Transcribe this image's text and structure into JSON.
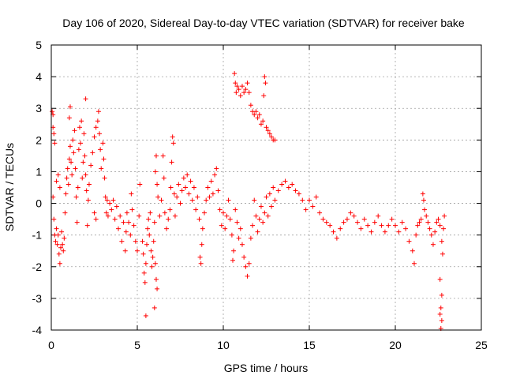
{
  "chart_data": {
    "type": "scatter",
    "title": "Day 106 of 2020, Sidereal Day-to-day VTEC variation (SDTVAR) for receiver bake",
    "xlabel": "GPS time / hours",
    "ylabel": "SDTVAR / TECUs",
    "xlim": [
      0,
      25
    ],
    "ylim": [
      -4,
      5
    ],
    "xticks": [
      0,
      5,
      10,
      15,
      20,
      25
    ],
    "yticks": [
      -4,
      -3,
      -2,
      -1,
      0,
      1,
      2,
      3,
      4,
      5
    ],
    "xtick_labels": [
      "0",
      "5",
      "10",
      "15",
      "20",
      "25"
    ],
    "ytick_labels": [
      "-4",
      "-3",
      "-2",
      "-1",
      "0",
      "1",
      "2",
      "3",
      "4",
      "5"
    ],
    "grid": true,
    "marker": "+",
    "marker_color": "#ff0000",
    "series": [
      {
        "name": "SDTVAR",
        "points": [
          [
            0.05,
            2.9
          ],
          [
            0.1,
            2.8
          ],
          [
            0.1,
            2.4
          ],
          [
            0.15,
            2.2
          ],
          [
            0.2,
            1.9
          ],
          [
            0.1,
            0.2
          ],
          [
            0.15,
            -0.5
          ],
          [
            0.2,
            -1.0
          ],
          [
            0.25,
            -1.2
          ],
          [
            0.3,
            -0.8
          ],
          [
            0.35,
            -1.3
          ],
          [
            0.4,
            -1.0
          ],
          [
            0.45,
            -1.6
          ],
          [
            0.5,
            -1.9
          ],
          [
            0.55,
            -1.4
          ],
          [
            0.6,
            -0.9
          ],
          [
            0.65,
            -1.3
          ],
          [
            0.7,
            -1.5
          ],
          [
            0.75,
            -1.1
          ],
          [
            0.8,
            -0.3
          ],
          [
            0.3,
            0.7
          ],
          [
            0.4,
            0.9
          ],
          [
            0.5,
            0.5
          ],
          [
            0.85,
            0.3
          ],
          [
            0.9,
            0.8
          ],
          [
            0.95,
            1.1
          ],
          [
            1.0,
            0.6
          ],
          [
            1.05,
            1.4
          ],
          [
            1.1,
            1.8
          ],
          [
            1.15,
            1.3
          ],
          [
            1.2,
            0.9
          ],
          [
            1.25,
            2.0
          ],
          [
            1.3,
            1.6
          ],
          [
            1.35,
            2.3
          ],
          [
            1.4,
            1.1
          ],
          [
            1.45,
            0.2
          ],
          [
            1.5,
            -0.6
          ],
          [
            1.55,
            0.5
          ],
          [
            1.6,
            1.7
          ],
          [
            1.65,
            2.4
          ],
          [
            1.7,
            1.9
          ],
          [
            1.75,
            2.6
          ],
          [
            1.8,
            0.8
          ],
          [
            1.85,
            1.3
          ],
          [
            1.9,
            2.2
          ],
          [
            1.95,
            1.5
          ],
          [
            2.0,
            0.9
          ],
          [
            2.05,
            0.4
          ],
          [
            2.1,
            -0.7
          ],
          [
            2.15,
            0.1
          ],
          [
            1.1,
            3.05
          ],
          [
            1.05,
            2.7
          ],
          [
            2.0,
            3.3
          ],
          [
            2.2,
            0.6
          ],
          [
            2.3,
            1.2
          ],
          [
            2.4,
            1.6
          ],
          [
            2.5,
            2.1
          ],
          [
            2.6,
            2.4
          ],
          [
            2.7,
            2.6
          ],
          [
            2.75,
            2.9
          ],
          [
            2.8,
            2.2
          ],
          [
            2.85,
            1.7
          ],
          [
            2.9,
            1.1
          ],
          [
            3.0,
            1.9
          ],
          [
            3.05,
            1.4
          ],
          [
            3.1,
            0.8
          ],
          [
            3.15,
            0.2
          ],
          [
            3.2,
            -0.3
          ],
          [
            3.25,
            0.1
          ],
          [
            3.3,
            -0.4
          ],
          [
            2.5,
            -0.3
          ],
          [
            2.6,
            -0.5
          ],
          [
            3.4,
            0.0
          ],
          [
            3.5,
            -0.2
          ],
          [
            3.6,
            0.1
          ],
          [
            3.7,
            -0.5
          ],
          [
            3.8,
            -0.1
          ],
          [
            3.9,
            -0.8
          ],
          [
            4.0,
            -0.4
          ],
          [
            4.1,
            -1.2
          ],
          [
            4.2,
            -0.6
          ],
          [
            4.3,
            -1.5
          ],
          [
            4.35,
            -0.9
          ],
          [
            4.4,
            -0.3
          ],
          [
            4.5,
            -0.6
          ],
          [
            4.6,
            -1.0
          ],
          [
            4.65,
            0.3
          ],
          [
            4.7,
            -0.2
          ],
          [
            4.8,
            -0.7
          ],
          [
            4.9,
            -1.2
          ],
          [
            5.0,
            -1.5
          ],
          [
            5.1,
            -0.4
          ],
          [
            5.15,
            0.6
          ],
          [
            5.3,
            -1.2
          ],
          [
            5.35,
            -1.6
          ],
          [
            5.4,
            -2.2
          ],
          [
            5.45,
            -2.5
          ],
          [
            5.5,
            -1.9
          ],
          [
            5.55,
            -1.3
          ],
          [
            5.6,
            -0.8
          ],
          [
            5.5,
            -3.55
          ],
          [
            5.65,
            -0.5
          ],
          [
            5.7,
            -1.0
          ],
          [
            5.75,
            -0.3
          ],
          [
            5.8,
            -1.5
          ],
          [
            5.85,
            -2.0
          ],
          [
            5.9,
            -1.7
          ],
          [
            5.95,
            -1.2
          ],
          [
            6.0,
            -0.6
          ],
          [
            6.05,
            -1.9
          ],
          [
            6.1,
            -2.4
          ],
          [
            6.15,
            -2.7
          ],
          [
            6.0,
            -3.3
          ],
          [
            6.05,
            1.0
          ],
          [
            6.1,
            1.5
          ],
          [
            6.15,
            0.6
          ],
          [
            6.2,
            0.2
          ],
          [
            6.3,
            -0.4
          ],
          [
            6.4,
            0.1
          ],
          [
            6.5,
            1.5
          ],
          [
            6.55,
            0.8
          ],
          [
            6.6,
            -0.3
          ],
          [
            6.7,
            -0.8
          ],
          [
            6.8,
            -0.5
          ],
          [
            6.9,
            -0.2
          ],
          [
            6.95,
            0.5
          ],
          [
            7.0,
            1.3
          ],
          [
            7.05,
            2.1
          ],
          [
            7.1,
            1.9
          ],
          [
            7.15,
            0.3
          ],
          [
            7.2,
            -0.4
          ],
          [
            7.3,
            0.2
          ],
          [
            7.4,
            0.6
          ],
          [
            7.5,
            0.0
          ],
          [
            7.6,
            0.4
          ],
          [
            7.7,
            0.8
          ],
          [
            7.8,
            0.5
          ],
          [
            7.9,
            0.9
          ],
          [
            8.0,
            0.3
          ],
          [
            8.1,
            0.7
          ],
          [
            8.2,
            0.1
          ],
          [
            8.3,
            0.5
          ],
          [
            8.4,
            -0.2
          ],
          [
            8.5,
            0.2
          ],
          [
            8.6,
            -0.5
          ],
          [
            8.65,
            -1.7
          ],
          [
            8.7,
            -1.9
          ],
          [
            8.75,
            -1.3
          ],
          [
            8.8,
            -0.8
          ],
          [
            8.9,
            -0.3
          ],
          [
            9.0,
            0.1
          ],
          [
            9.1,
            0.5
          ],
          [
            9.2,
            0.2
          ],
          [
            9.3,
            0.7
          ],
          [
            9.4,
            0.3
          ],
          [
            9.5,
            0.9
          ],
          [
            9.6,
            1.1
          ],
          [
            9.7,
            0.4
          ],
          [
            9.8,
            -0.2
          ],
          [
            9.9,
            -0.7
          ],
          [
            10.0,
            -0.3
          ],
          [
            10.1,
            -0.8
          ],
          [
            10.2,
            -0.4
          ],
          [
            10.3,
            0.1
          ],
          [
            10.4,
            -0.5
          ],
          [
            10.5,
            -1.0
          ],
          [
            10.55,
            -1.8
          ],
          [
            10.6,
            -1.5
          ],
          [
            10.65,
            4.1
          ],
          [
            10.7,
            3.8
          ],
          [
            10.75,
            3.5
          ],
          [
            10.8,
            3.7
          ],
          [
            10.9,
            3.6
          ],
          [
            11.0,
            3.4
          ],
          [
            11.1,
            3.7
          ],
          [
            11.2,
            3.5
          ],
          [
            11.3,
            3.6
          ],
          [
            11.4,
            3.8
          ],
          [
            11.5,
            3.5
          ],
          [
            11.6,
            3.1
          ],
          [
            11.7,
            2.9
          ],
          [
            11.8,
            2.8
          ],
          [
            11.9,
            2.9
          ],
          [
            12.0,
            2.7
          ],
          [
            12.1,
            2.8
          ],
          [
            12.2,
            2.5
          ],
          [
            12.3,
            2.6
          ],
          [
            12.35,
            3.4
          ],
          [
            12.4,
            4.0
          ],
          [
            12.45,
            3.8
          ],
          [
            12.5,
            2.4
          ],
          [
            12.6,
            2.3
          ],
          [
            12.7,
            2.2
          ],
          [
            12.8,
            2.1
          ],
          [
            12.9,
            2.0
          ],
          [
            13.0,
            2.0
          ],
          [
            10.7,
            -0.2
          ],
          [
            10.8,
            -0.6
          ],
          [
            10.9,
            -1.1
          ],
          [
            11.0,
            -0.8
          ],
          [
            11.1,
            -1.3
          ],
          [
            11.2,
            -1.7
          ],
          [
            11.3,
            -2.0
          ],
          [
            11.4,
            -2.3
          ],
          [
            11.5,
            -1.9
          ],
          [
            11.6,
            -1.1
          ],
          [
            11.7,
            -0.7
          ],
          [
            11.8,
            0.1
          ],
          [
            11.9,
            -0.4
          ],
          [
            12.0,
            -0.9
          ],
          [
            12.1,
            -0.5
          ],
          [
            12.2,
            -0.1
          ],
          [
            12.3,
            -0.6
          ],
          [
            12.4,
            -0.3
          ],
          [
            12.5,
            0.2
          ],
          [
            12.6,
            -0.4
          ],
          [
            12.7,
            0.3
          ],
          [
            12.8,
            -0.1
          ],
          [
            12.9,
            0.5
          ],
          [
            13.0,
            0.1
          ],
          [
            13.2,
            0.4
          ],
          [
            13.4,
            0.6
          ],
          [
            13.6,
            0.7
          ],
          [
            13.8,
            0.5
          ],
          [
            14.0,
            0.6
          ],
          [
            14.2,
            0.4
          ],
          [
            14.4,
            0.3
          ],
          [
            14.6,
            0.1
          ],
          [
            14.8,
            -0.2
          ],
          [
            15.0,
            0.1
          ],
          [
            15.2,
            -0.1
          ],
          [
            15.4,
            0.2
          ],
          [
            15.6,
            -0.3
          ],
          [
            15.8,
            -0.5
          ],
          [
            16.0,
            -0.6
          ],
          [
            16.2,
            -0.7
          ],
          [
            16.4,
            -0.9
          ],
          [
            16.6,
            -1.1
          ],
          [
            16.8,
            -0.8
          ],
          [
            17.0,
            -0.6
          ],
          [
            17.2,
            -0.5
          ],
          [
            17.4,
            -0.3
          ],
          [
            17.6,
            -0.4
          ],
          [
            17.8,
            -0.6
          ],
          [
            18.0,
            -0.8
          ],
          [
            18.2,
            -0.5
          ],
          [
            18.4,
            -0.7
          ],
          [
            18.6,
            -0.9
          ],
          [
            18.8,
            -0.6
          ],
          [
            19.0,
            -0.4
          ],
          [
            19.2,
            -0.7
          ],
          [
            19.4,
            -0.9
          ],
          [
            19.6,
            -0.7
          ],
          [
            19.8,
            -0.5
          ],
          [
            20.0,
            -0.7
          ],
          [
            20.2,
            -0.9
          ],
          [
            20.4,
            -0.6
          ],
          [
            20.6,
            -0.8
          ],
          [
            20.8,
            -1.2
          ],
          [
            21.0,
            -1.5
          ],
          [
            21.1,
            -1.9
          ],
          [
            21.2,
            -1.0
          ],
          [
            21.3,
            -0.7
          ],
          [
            21.4,
            -0.6
          ],
          [
            21.5,
            -0.5
          ],
          [
            21.6,
            0.3
          ],
          [
            21.65,
            0.1
          ],
          [
            21.7,
            -0.2
          ],
          [
            21.8,
            -0.4
          ],
          [
            21.9,
            -0.6
          ],
          [
            22.0,
            -0.8
          ],
          [
            22.1,
            -1.0
          ],
          [
            22.2,
            -1.3
          ],
          [
            22.3,
            -0.9
          ],
          [
            22.4,
            -0.6
          ],
          [
            22.5,
            -0.5
          ],
          [
            22.6,
            -0.7
          ],
          [
            22.7,
            -1.2
          ],
          [
            22.75,
            -1.6
          ],
          [
            22.8,
            -0.8
          ],
          [
            22.85,
            -0.4
          ],
          [
            22.6,
            -2.4
          ],
          [
            22.7,
            -2.9
          ],
          [
            22.65,
            -3.3
          ],
          [
            22.6,
            -3.5
          ],
          [
            22.7,
            -3.7
          ],
          [
            22.65,
            -3.95
          ]
        ]
      }
    ]
  }
}
